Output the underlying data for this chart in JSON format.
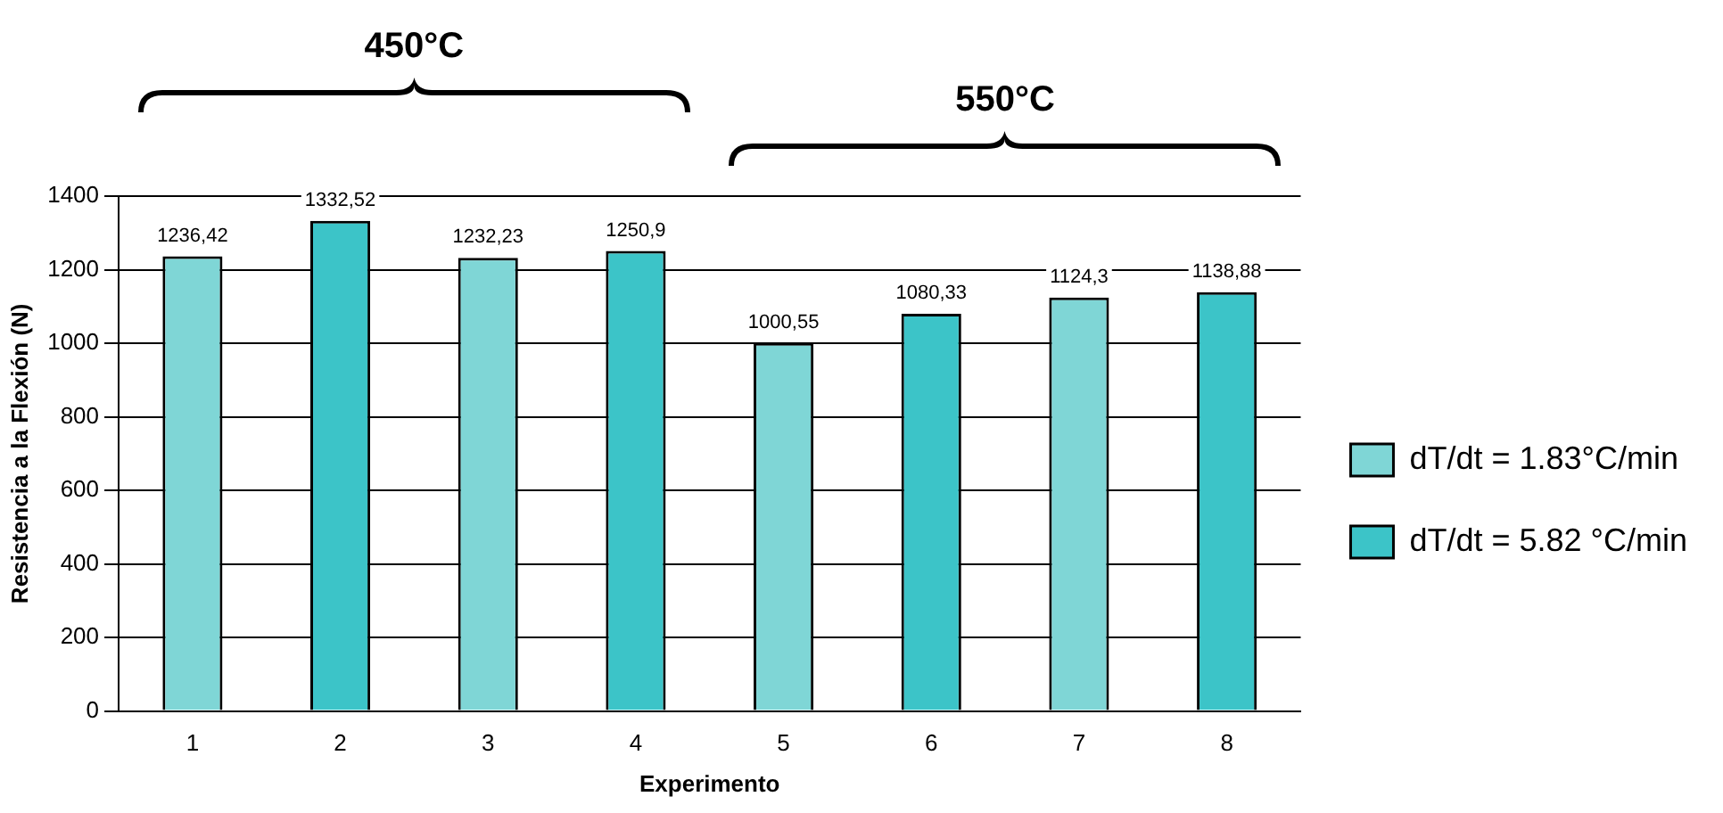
{
  "chart_data": {
    "type": "bar",
    "categories": [
      "1",
      "2",
      "3",
      "4",
      "5",
      "6",
      "7",
      "8"
    ],
    "series": [
      {
        "name": "dT/dt = 1.83°C/min",
        "color": "#7fd6d6",
        "values": [
          1236.42,
          null,
          1232.23,
          null,
          1000.55,
          null,
          1124.3,
          null
        ],
        "value_labels": [
          "1236,42",
          null,
          "1232,23",
          null,
          "1000,55",
          null,
          "1124,3",
          null
        ]
      },
      {
        "name": "dT/dt = 5.82 °C/min",
        "color": "#3cc4c8",
        "values": [
          null,
          1332.52,
          null,
          1250.9,
          null,
          1080.33,
          null,
          1138.88
        ],
        "value_labels": [
          null,
          "1332,52",
          null,
          "1250,9",
          null,
          "1080,33",
          null,
          "1138,88"
        ]
      }
    ],
    "xlabel": "Experimento",
    "ylabel": "Resistencia a la Flexión (N)",
    "ylim": [
      0,
      1400
    ],
    "yticks": [
      0,
      200,
      400,
      600,
      800,
      1000,
      1200,
      1400
    ],
    "grid": "y",
    "legend": "right",
    "annotations": [
      "450°C",
      "550°C"
    ]
  }
}
